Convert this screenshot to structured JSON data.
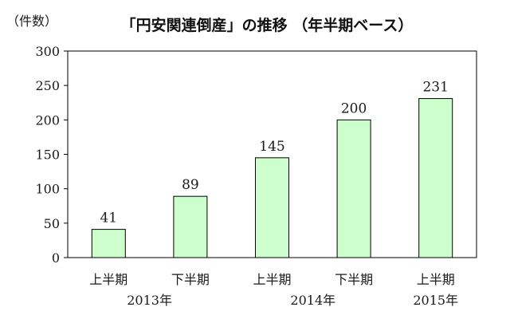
{
  "chart_data": {
    "type": "bar",
    "title": "「円安関連倒産」の推移 （年半期ベース）",
    "ylabel": "（件数）",
    "ylim": [
      0,
      300
    ],
    "yticks": [
      0,
      50,
      100,
      150,
      200,
      250,
      300
    ],
    "categories": [
      "上半期",
      "下半期",
      "上半期",
      "下半期",
      "上半期"
    ],
    "year_labels": [
      "2013年",
      "2014年",
      "2015年"
    ],
    "values": [
      41,
      89,
      145,
      200,
      231
    ],
    "bar_color": "#ccffcc",
    "bar_edge_color": "#000000"
  }
}
